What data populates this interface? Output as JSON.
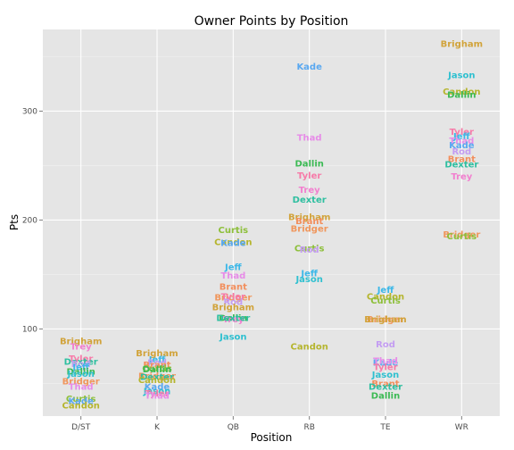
{
  "chart_data": {
    "type": "scatter",
    "title": "Owner Points by Position",
    "xlabel": "Position",
    "ylabel": "Pts",
    "categories": [
      "D/ST",
      "K",
      "QB",
      "RB",
      "TE",
      "WR"
    ],
    "ylim": [
      20,
      375
    ],
    "yticks": [
      100,
      200,
      300
    ],
    "grid": true,
    "legend": "none",
    "owner_colors": {
      "Brigham": "#d1a33a",
      "Brant": "#f28e5c",
      "Bridger": "#f0965c",
      "Candon": "#b5b52e",
      "Curtis": "#8dbf3a",
      "Dallin": "#3cba54",
      "Dexter": "#2ebfa0",
      "Jason": "#2fc0d0",
      "Jeff": "#3cb8e8",
      "Kade": "#5aa8f0",
      "Rod": "#c39cf2",
      "Thad": "#e78be8",
      "Trey": "#f27fcf",
      "Tyler": "#f77aa8"
    },
    "points": [
      {
        "position": "D/ST",
        "owner": "Brigham",
        "pts": 89
      },
      {
        "position": "D/ST",
        "owner": "Trey",
        "pts": 84
      },
      {
        "position": "D/ST",
        "owner": "Tyler",
        "pts": 73
      },
      {
        "position": "D/ST",
        "owner": "Dexter",
        "pts": 70
      },
      {
        "position": "D/ST",
        "owner": "Rod",
        "pts": 68
      },
      {
        "position": "D/ST",
        "owner": "Jeff",
        "pts": 65
      },
      {
        "position": "D/ST",
        "owner": "Dallin",
        "pts": 61
      },
      {
        "position": "D/ST",
        "owner": "Jason",
        "pts": 59
      },
      {
        "position": "D/ST",
        "owner": "Bridger",
        "pts": 52
      },
      {
        "position": "D/ST",
        "owner": "Thad",
        "pts": 47
      },
      {
        "position": "D/ST",
        "owner": "Curtis",
        "pts": 36
      },
      {
        "position": "D/ST",
        "owner": "Kade",
        "pts": 34
      },
      {
        "position": "D/ST",
        "owner": "Candon",
        "pts": 30
      },
      {
        "position": "K",
        "owner": "Brigham",
        "pts": 78
      },
      {
        "position": "K",
        "owner": "Jeff",
        "pts": 72
      },
      {
        "position": "K",
        "owner": "Rod",
        "pts": 69
      },
      {
        "position": "K",
        "owner": "Brant",
        "pts": 67
      },
      {
        "position": "K",
        "owner": "Curtis",
        "pts": 64
      },
      {
        "position": "K",
        "owner": "Dallin",
        "pts": 63
      },
      {
        "position": "K",
        "owner": "Bridger",
        "pts": 57
      },
      {
        "position": "K",
        "owner": "Dexter",
        "pts": 56
      },
      {
        "position": "K",
        "owner": "Candon",
        "pts": 53
      },
      {
        "position": "K",
        "owner": "Kade",
        "pts": 47
      },
      {
        "position": "K",
        "owner": "Jason",
        "pts": 43
      },
      {
        "position": "K",
        "owner": "Tyler",
        "pts": 41
      },
      {
        "position": "K",
        "owner": "Thad",
        "pts": 39
      },
      {
        "position": "QB",
        "owner": "Curtis",
        "pts": 191
      },
      {
        "position": "QB",
        "owner": "Candon",
        "pts": 180
      },
      {
        "position": "QB",
        "owner": "Kade",
        "pts": 179
      },
      {
        "position": "QB",
        "owner": "Jeff",
        "pts": 157
      },
      {
        "position": "QB",
        "owner": "Thad",
        "pts": 149
      },
      {
        "position": "QB",
        "owner": "Brant",
        "pts": 139
      },
      {
        "position": "QB",
        "owner": "Bridger",
        "pts": 129
      },
      {
        "position": "QB",
        "owner": "Tyler",
        "pts": 130
      },
      {
        "position": "QB",
        "owner": "Rod",
        "pts": 125
      },
      {
        "position": "QB",
        "owner": "Brigham",
        "pts": 120
      },
      {
        "position": "QB",
        "owner": "Dallin",
        "pts": 110
      },
      {
        "position": "QB",
        "owner": "Trey",
        "pts": 109
      },
      {
        "position": "QB",
        "owner": "Dexter",
        "pts": 110
      },
      {
        "position": "QB",
        "owner": "Jason",
        "pts": 93
      },
      {
        "position": "RB",
        "owner": "Kade",
        "pts": 341
      },
      {
        "position": "RB",
        "owner": "Thad",
        "pts": 276
      },
      {
        "position": "RB",
        "owner": "Dallin",
        "pts": 252
      },
      {
        "position": "RB",
        "owner": "Tyler",
        "pts": 241
      },
      {
        "position": "RB",
        "owner": "Trey",
        "pts": 228
      },
      {
        "position": "RB",
        "owner": "Dexter",
        "pts": 219
      },
      {
        "position": "RB",
        "owner": "Brigham",
        "pts": 203
      },
      {
        "position": "RB",
        "owner": "Brant",
        "pts": 199
      },
      {
        "position": "RB",
        "owner": "Bridger",
        "pts": 192
      },
      {
        "position": "RB",
        "owner": "Curtis",
        "pts": 174
      },
      {
        "position": "RB",
        "owner": "Rod",
        "pts": 173
      },
      {
        "position": "RB",
        "owner": "Jeff",
        "pts": 151
      },
      {
        "position": "RB",
        "owner": "Jason",
        "pts": 146
      },
      {
        "position": "RB",
        "owner": "Candon",
        "pts": 84
      },
      {
        "position": "TE",
        "owner": "Jeff",
        "pts": 136
      },
      {
        "position": "TE",
        "owner": "Candon",
        "pts": 130
      },
      {
        "position": "TE",
        "owner": "Curtis",
        "pts": 126
      },
      {
        "position": "TE",
        "owner": "Bridger",
        "pts": 109
      },
      {
        "position": "TE",
        "owner": "Brigham",
        "pts": 109
      },
      {
        "position": "TE",
        "owner": "Rod",
        "pts": 86
      },
      {
        "position": "TE",
        "owner": "Kade",
        "pts": 69
      },
      {
        "position": "TE",
        "owner": "Thad",
        "pts": 71
      },
      {
        "position": "TE",
        "owner": "Tyler",
        "pts": 65
      },
      {
        "position": "TE",
        "owner": "Jason",
        "pts": 58
      },
      {
        "position": "TE",
        "owner": "Brant",
        "pts": 50
      },
      {
        "position": "TE",
        "owner": "Dexter",
        "pts": 47
      },
      {
        "position": "TE",
        "owner": "Dallin",
        "pts": 39
      },
      {
        "position": "WR",
        "owner": "Brigham",
        "pts": 362
      },
      {
        "position": "WR",
        "owner": "Jason",
        "pts": 333
      },
      {
        "position": "WR",
        "owner": "Candon",
        "pts": 318
      },
      {
        "position": "WR",
        "owner": "Dallin",
        "pts": 315
      },
      {
        "position": "WR",
        "owner": "Tyler",
        "pts": 281
      },
      {
        "position": "WR",
        "owner": "Jeff",
        "pts": 277
      },
      {
        "position": "WR",
        "owner": "Thad",
        "pts": 273
      },
      {
        "position": "WR",
        "owner": "Kade",
        "pts": 269
      },
      {
        "position": "WR",
        "owner": "Rod",
        "pts": 263
      },
      {
        "position": "WR",
        "owner": "Brant",
        "pts": 256
      },
      {
        "position": "WR",
        "owner": "Dexter",
        "pts": 251
      },
      {
        "position": "WR",
        "owner": "Trey",
        "pts": 240
      },
      {
        "position": "WR",
        "owner": "Bridger",
        "pts": 187
      },
      {
        "position": "WR",
        "owner": "Curtis",
        "pts": 185
      }
    ]
  }
}
